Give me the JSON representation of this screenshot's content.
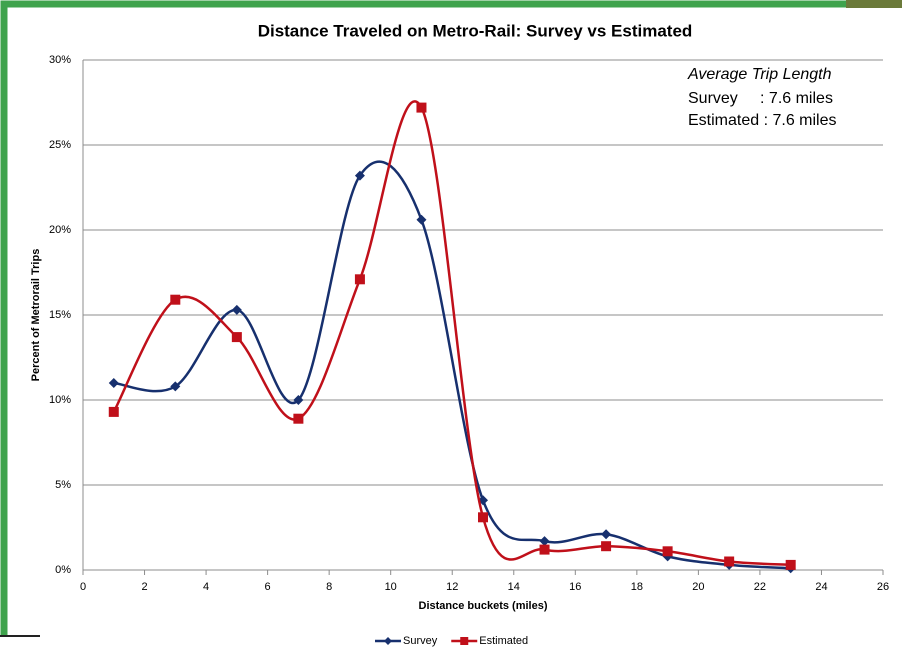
{
  "chart_data": {
    "type": "line",
    "title": "Distance Traveled on Metro-Rail: Survey vs Estimated",
    "x_label": "Distance buckets (miles)",
    "y_label": "Percent of Metrorail Trips",
    "annotation": {
      "heading": "Average Trip Length",
      "lines": [
        "Survey     : 7.6 miles",
        "Estimated : 7.6 miles"
      ]
    },
    "x": [
      1,
      3,
      5,
      7,
      9,
      11,
      13,
      15,
      17,
      19,
      21,
      23
    ],
    "series": [
      {
        "name": "Survey",
        "color": "#17306e",
        "marker": "diamond",
        "values": [
          11.0,
          10.8,
          15.3,
          10.0,
          23.2,
          20.6,
          4.1,
          1.7,
          2.1,
          0.8,
          0.3,
          0.1
        ]
      },
      {
        "name": "Estimated",
        "color": "#c0101a",
        "marker": "square",
        "values": [
          9.3,
          15.9,
          13.7,
          8.9,
          17.1,
          27.2,
          3.1,
          1.2,
          1.4,
          1.1,
          0.5,
          0.3
        ]
      }
    ],
    "xlim": [
      0,
      26
    ],
    "xticks": [
      0,
      2,
      4,
      6,
      8,
      10,
      12,
      14,
      16,
      18,
      20,
      22,
      24,
      26
    ],
    "ylim": [
      0,
      30
    ],
    "yticks": [
      {
        "value": 0,
        "label": "0%"
      },
      {
        "value": 5,
        "label": "5%"
      },
      {
        "value": 10,
        "label": "10%"
      },
      {
        "value": 15,
        "label": "15%"
      },
      {
        "value": 20,
        "label": "20%"
      },
      {
        "value": 25,
        "label": "25%"
      },
      {
        "value": 30,
        "label": "30%"
      }
    ],
    "grid": true,
    "smooth": true,
    "legend": "bottom"
  }
}
